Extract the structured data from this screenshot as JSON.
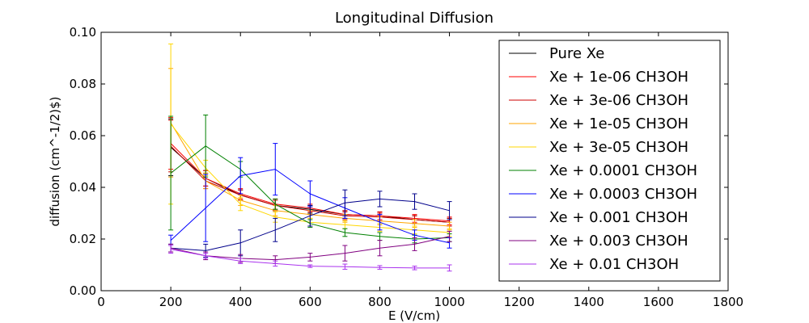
{
  "chart_data": {
    "type": "line",
    "title": "Longitudinal Diffusion",
    "xlabel": "E (V/cm)",
    "ylabel": "diffusion (cm^-1/2)$)",
    "xlim": [
      0,
      1800
    ],
    "ylim": [
      0.0,
      0.1
    ],
    "xticks": [
      "0",
      "200",
      "400",
      "600",
      "800",
      "1000",
      "1200",
      "1400",
      "1600",
      "1800"
    ],
    "yticks": [
      "0.00",
      "0.02",
      "0.04",
      "0.06",
      "0.08",
      "0.10"
    ],
    "grid": false,
    "legend_position": "top-right",
    "error_bars": true,
    "series": [
      {
        "name": "Pure Xe",
        "color": "#000000",
        "x": [
          200,
          300,
          400,
          500,
          600,
          700,
          800,
          900,
          1000
        ],
        "y": [
          0.0555,
          0.0435,
          0.037,
          0.033,
          0.0315,
          0.0295,
          0.029,
          0.0275,
          0.0265
        ],
        "err": [
          0.011,
          0.003,
          0.002,
          0.002,
          0.0015,
          0.0015,
          0.0015,
          0.0015,
          0.0015
        ]
      },
      {
        "name": "Xe + 1e-06 CH3OH",
        "color": "#ff0000",
        "x": [
          200,
          300,
          400,
          500,
          600,
          700,
          800,
          900,
          1000
        ],
        "y": [
          0.057,
          0.0435,
          0.0375,
          0.0335,
          0.032,
          0.0295,
          0.029,
          0.028,
          0.027
        ],
        "err": [
          0.01,
          0.003,
          0.002,
          0.002,
          0.0015,
          0.0015,
          0.0015,
          0.0015,
          0.0015
        ]
      },
      {
        "name": "Xe + 3e-06 CH3OH",
        "color": "#cc0000",
        "x": [
          200,
          300,
          400,
          500,
          600,
          700,
          800,
          900,
          1000
        ],
        "y": [
          0.056,
          0.0425,
          0.037,
          0.033,
          0.031,
          0.029,
          0.0285,
          0.0275,
          0.0265
        ],
        "err": [
          0.01,
          0.003,
          0.002,
          0.002,
          0.0015,
          0.0015,
          0.0015,
          0.0015,
          0.0015
        ]
      },
      {
        "name": "Xe + 1e-05 CH3OH",
        "color": "#ffa500",
        "x": [
          200,
          300,
          400,
          500,
          600,
          700,
          800,
          900,
          1000
        ],
        "y": [
          0.065,
          0.0425,
          0.035,
          0.031,
          0.0295,
          0.028,
          0.027,
          0.026,
          0.025
        ],
        "err": [
          0.021,
          0.003,
          0.002,
          0.002,
          0.0015,
          0.0015,
          0.0015,
          0.0015,
          0.0015
        ]
      },
      {
        "name": "Xe + 3e-05 CH3OH",
        "color": "#ffd700",
        "x": [
          200,
          300,
          400,
          500,
          600,
          700,
          800,
          900,
          1000
        ],
        "y": [
          0.0645,
          0.0475,
          0.0335,
          0.0285,
          0.0265,
          0.0255,
          0.0245,
          0.0235,
          0.0225
        ],
        "err": [
          0.031,
          0.003,
          0.0025,
          0.002,
          0.0015,
          0.0015,
          0.0015,
          0.0015,
          0.0015
        ]
      },
      {
        "name": "Xe + 0.0001 CH3OH",
        "color": "#008000",
        "x": [
          200,
          300,
          400,
          500,
          600,
          700,
          800,
          900,
          1000
        ],
        "y": [
          0.0455,
          0.056,
          0.047,
          0.0335,
          0.026,
          0.0225,
          0.021,
          0.02,
          0.0205
        ],
        "err": [
          0.022,
          0.012,
          0.003,
          0.002,
          0.0015,
          0.0015,
          0.0015,
          0.0015,
          0.0015
        ]
      },
      {
        "name": "Xe + 0.0003 CH3OH",
        "color": "#0000ff",
        "x": [
          200,
          300,
          400,
          500,
          600,
          700,
          800,
          900,
          1000
        ],
        "y": [
          0.0195,
          0.032,
          0.0445,
          0.047,
          0.0375,
          0.032,
          0.0265,
          0.0215,
          0.0185
        ],
        "err": [
          0.002,
          0.013,
          0.007,
          0.01,
          0.005,
          0.004,
          0.003,
          0.002,
          0.002
        ]
      },
      {
        "name": "Xe + 0.001 CH3OH",
        "color": "#00008b",
        "x": [
          200,
          300,
          400,
          500,
          600,
          700,
          800,
          900,
          1000
        ],
        "y": [
          0.0165,
          0.0155,
          0.0185,
          0.0235,
          0.029,
          0.034,
          0.0355,
          0.0345,
          0.031
        ],
        "err": [
          0.0015,
          0.0025,
          0.005,
          0.0045,
          0.004,
          0.005,
          0.003,
          0.003,
          0.0035
        ]
      },
      {
        "name": "Xe + 0.003 CH3OH",
        "color": "#800080",
        "x": [
          200,
          300,
          400,
          500,
          600,
          700,
          800,
          900,
          1000
        ],
        "y": [
          0.0165,
          0.0135,
          0.0125,
          0.012,
          0.013,
          0.0145,
          0.0165,
          0.018,
          0.021
        ],
        "err": [
          0.0015,
          0.0015,
          0.0015,
          0.0015,
          0.0015,
          0.003,
          0.003,
          0.0025,
          0.002
        ]
      },
      {
        "name": "Xe + 0.01 CH3OH",
        "color": "#aa33ee",
        "x": [
          200,
          300,
          400,
          500,
          600,
          700,
          800,
          900,
          1000
        ],
        "y": [
          0.016,
          0.0135,
          0.0115,
          0.0105,
          0.0095,
          0.0093,
          0.009,
          0.0088,
          0.0088
        ],
        "err": [
          0.0015,
          0.001,
          0.001,
          0.001,
          0.0005,
          0.001,
          0.0007,
          0.0007,
          0.0012
        ]
      }
    ]
  }
}
